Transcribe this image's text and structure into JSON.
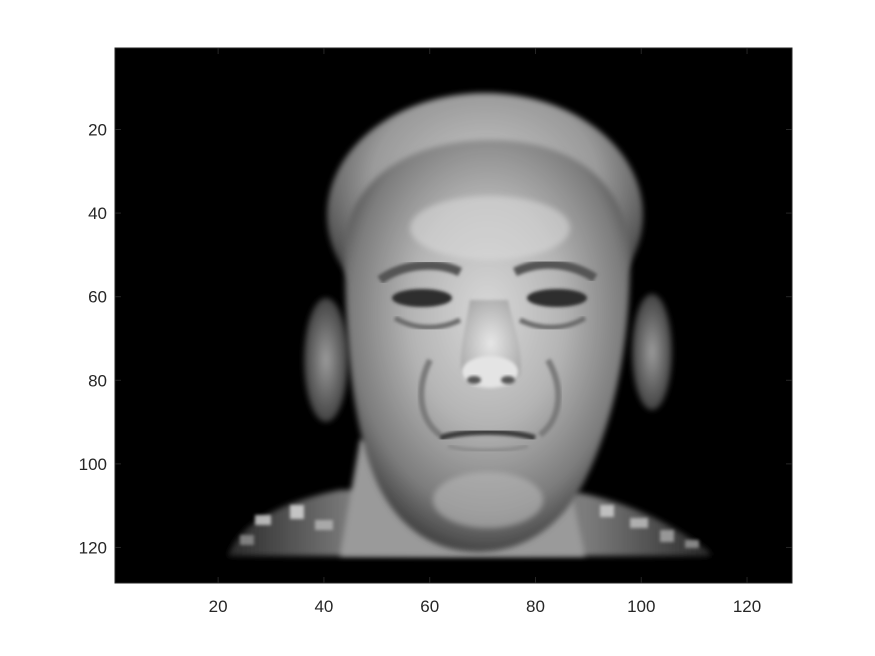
{
  "figure": {
    "type": "image-display",
    "colormap": "gray",
    "background_color": "#ffffff",
    "axes_color": "#262626",
    "image_subject": "grayscale portrait of an elderly man's face, frontal view, on a black background"
  },
  "axes": {
    "x_range": [
      0.5,
      128.5
    ],
    "y_range": [
      0.5,
      128.5
    ],
    "y_direction": "reversed",
    "grid": false,
    "x_ticks": [
      {
        "value": 20,
        "label": "20"
      },
      {
        "value": 40,
        "label": "40"
      },
      {
        "value": 60,
        "label": "60"
      },
      {
        "value": 80,
        "label": "80"
      },
      {
        "value": 100,
        "label": "100"
      },
      {
        "value": 120,
        "label": "120"
      }
    ],
    "y_ticks": [
      {
        "value": 20,
        "label": "20"
      },
      {
        "value": 40,
        "label": "40"
      },
      {
        "value": 60,
        "label": "60"
      },
      {
        "value": 80,
        "label": "80"
      },
      {
        "value": 100,
        "label": "100"
      },
      {
        "value": 120,
        "label": "120"
      }
    ]
  }
}
